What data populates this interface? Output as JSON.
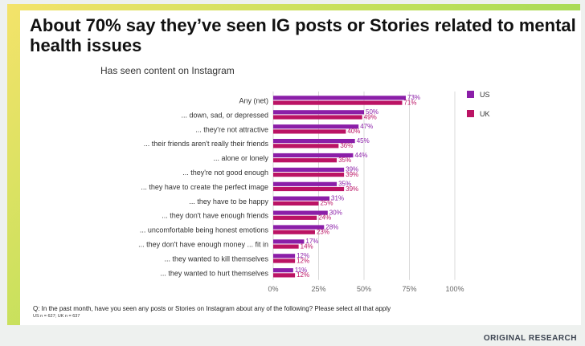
{
  "chart_data": {
    "type": "bar",
    "orientation": "horizontal",
    "title": "About 70% say they’ve seen IG posts or Stories related to mental health issues",
    "subtitle": "Has seen content on Instagram",
    "categories": [
      "Any (net)",
      "... down, sad, or depressed",
      "... they're not attractive",
      "... their friends aren't really their friends",
      "... alone or lonely",
      "... they're not good enough",
      "... they have to create the perfect image",
      "... they have to be happy",
      "... they don't have enough friends",
      "... uncomfortable being honest emotions",
      "... they don't have enough money ... fit in",
      "... they wanted to kill themselves",
      "... they wanted to hurt themselves"
    ],
    "series": [
      {
        "name": "US",
        "color": "#8b1ea8",
        "values": [
          73,
          50,
          47,
          45,
          44,
          39,
          35,
          31,
          30,
          28,
          17,
          12,
          11
        ]
      },
      {
        "name": "UK",
        "color": "#bb1364",
        "values": [
          71,
          49,
          40,
          36,
          35,
          39,
          39,
          25,
          24,
          23,
          14,
          12,
          12
        ]
      }
    ],
    "x_ticks": [
      "0%",
      "25%",
      "50%",
      "75%",
      "100%"
    ],
    "xlim": [
      0,
      100
    ],
    "legend_position": "top-right",
    "value_suffix": "%"
  },
  "footnote": "Q: In the past month, have you seen any posts or Stories on Instagram about any of the following? Please select all that apply",
  "sample_note": "US n = 627; UK n = 637",
  "brand": "ORIGINAL RESEARCH"
}
